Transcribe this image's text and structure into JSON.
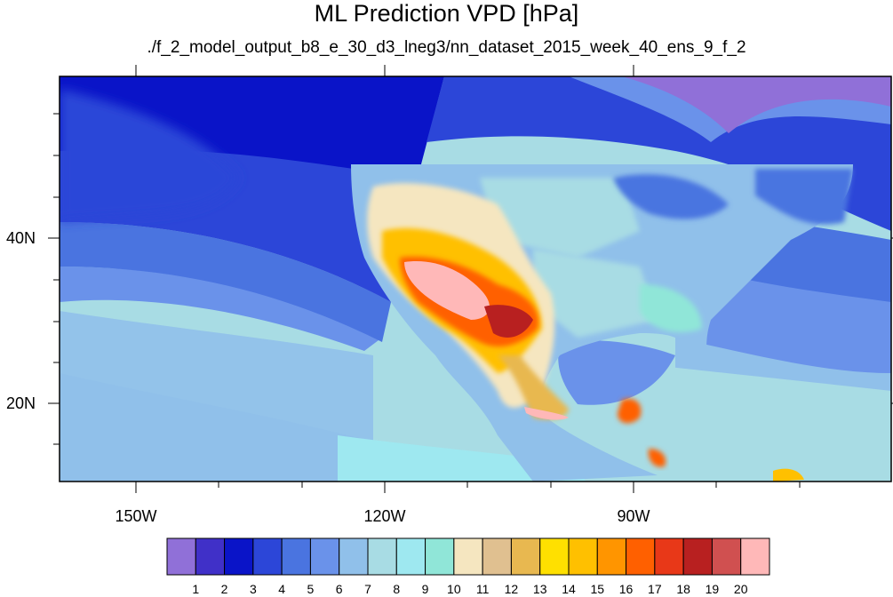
{
  "title": "ML Prediction VPD [hPa]",
  "subtitle": "./f_2_model_output_b8_e_30_d3_lneg3/nn_dataset_2015_week_40_ens_9_f_2",
  "lon_labels": [
    "150W",
    "120W",
    "90W"
  ],
  "lat_labels": [
    "40N",
    "20N"
  ],
  "colorbar": {
    "labels": [
      "1",
      "2",
      "3",
      "4",
      "5",
      "6",
      "7",
      "8",
      "9",
      "10",
      "11",
      "12",
      "13",
      "14",
      "15",
      "16",
      "17",
      "18",
      "19",
      "20"
    ],
    "colors": [
      "#9070d8",
      "#4030c8",
      "#0a14c8",
      "#2c46d8",
      "#4a74e0",
      "#6a92ea",
      "#90c0ea",
      "#a8dce4",
      "#9ee8f0",
      "#90e6d8",
      "#f5e6c0",
      "#e0c090",
      "#e8b850",
      "#ffe000",
      "#ffc000",
      "#ff9500",
      "#ff6000",
      "#e83818",
      "#b82020",
      "#d05050",
      "#ffb8b8"
    ]
  }
}
